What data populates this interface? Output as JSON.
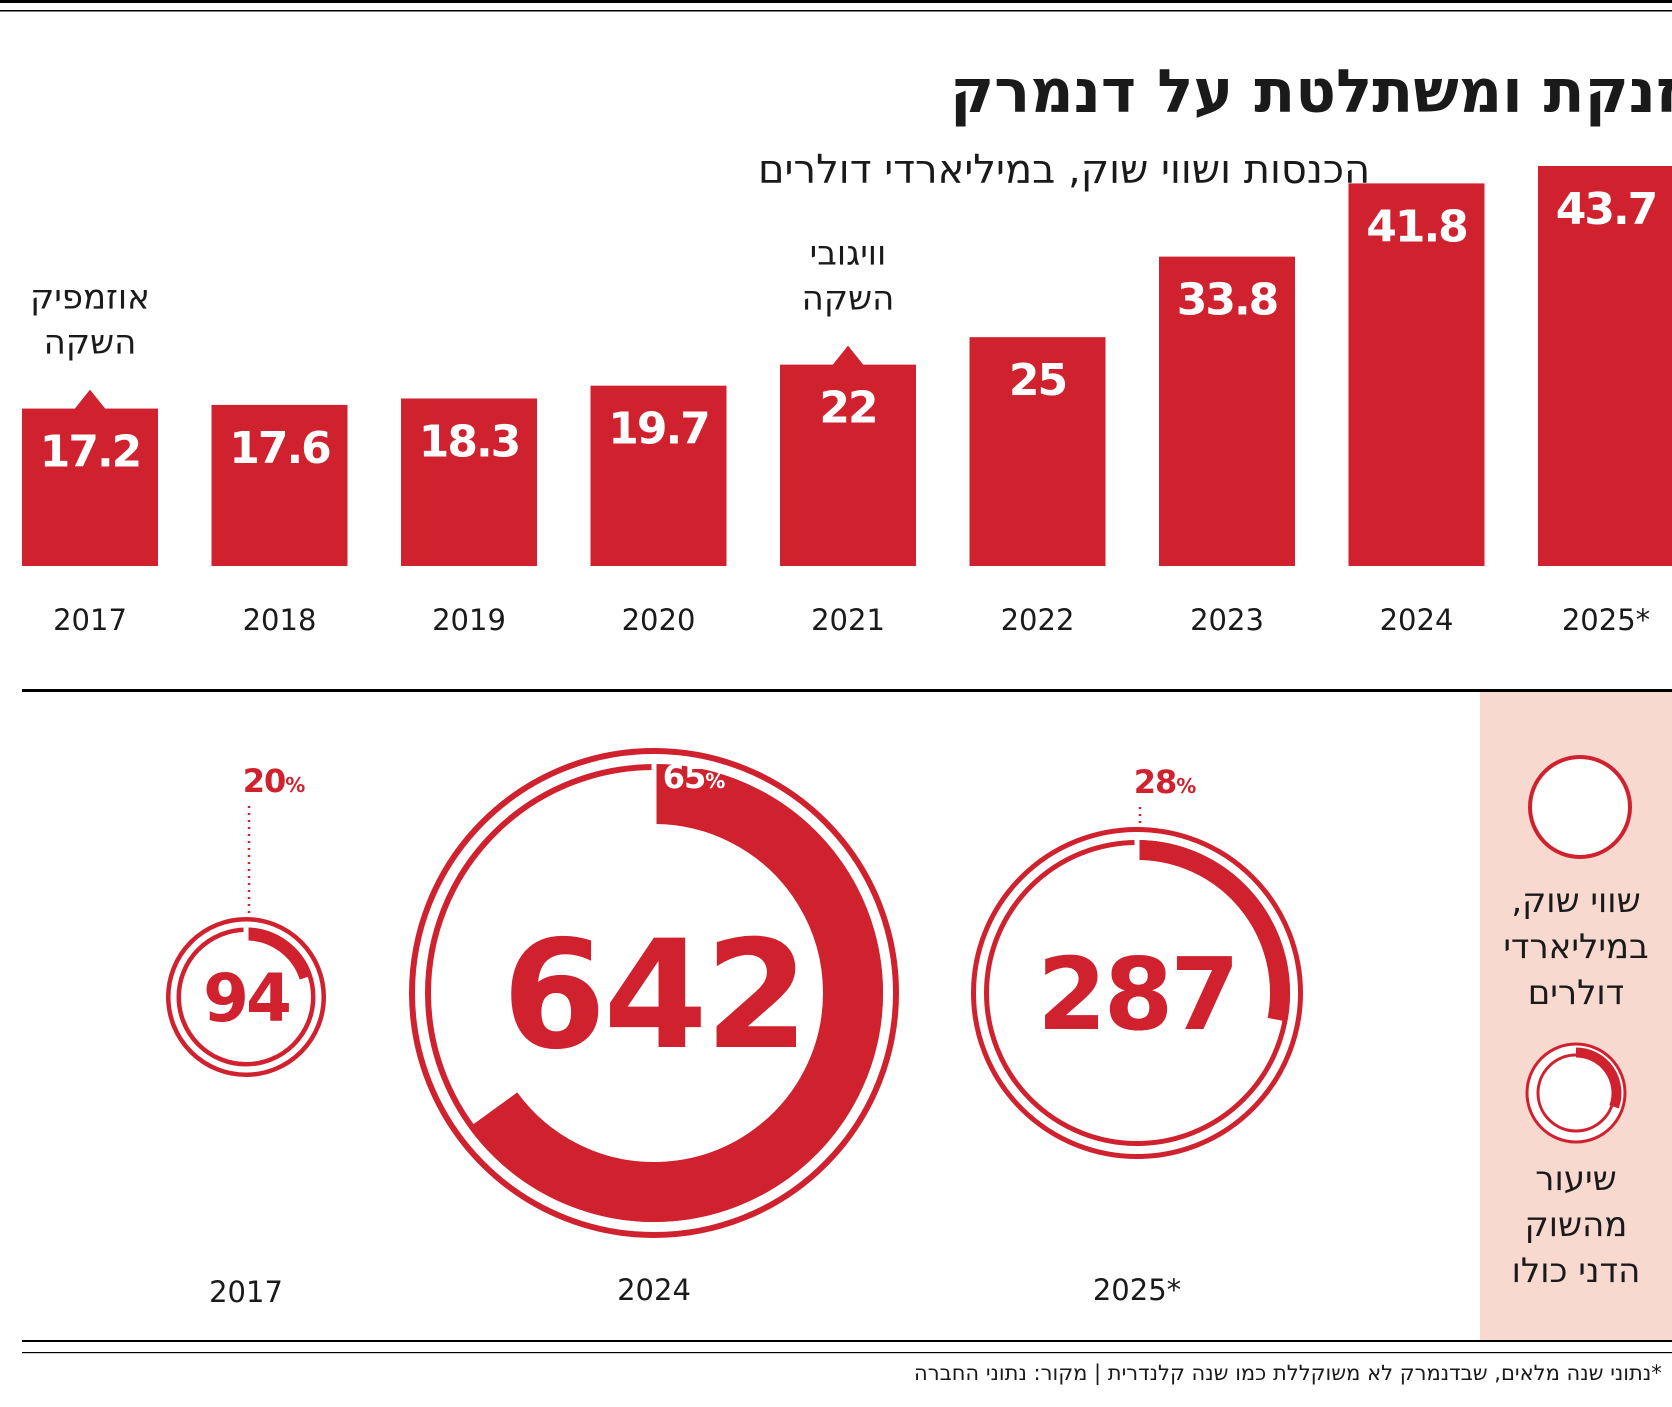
{
  "title": "נובו מזנקת ומשתלטת על דנמרק",
  "subtitle": "הכנסות ושווי שוק, במיליארדי דולרים",
  "footnote": "*נתוני שנה מלאים, שבדנמרק לא משוקללת כמו שנה קלנדרית | מקור: נתוני החברה",
  "colors": {
    "accent": "#d0222e",
    "legend_bg": "#f8d9cf",
    "text": "#1a1a1a",
    "rule": "#000000"
  },
  "chart_data": [
    {
      "type": "bar",
      "title": "הכנסות",
      "unit": "מיליארדי דולרים",
      "categories": [
        "2017",
        "2018",
        "2019",
        "2020",
        "2021",
        "2022",
        "2023",
        "2024",
        "2025*"
      ],
      "values": [
        17.2,
        17.6,
        18.3,
        19.7,
        22,
        25,
        33.8,
        41.8,
        43.7
      ],
      "value_labels": [
        "17.2",
        "17.6",
        "18.3",
        "19.7",
        "22",
        "25",
        "33.8",
        "41.8",
        "43.7"
      ],
      "ylim": [
        0,
        43.7
      ],
      "annotations": [
        {
          "category": "2017",
          "lines": [
            "אוזמפיק",
            "השקה"
          ]
        },
        {
          "category": "2021",
          "lines": [
            "וויגובי",
            "השקה"
          ]
        }
      ]
    },
    {
      "type": "pie",
      "title": "שווי שוק ושיעור מהשוק הדני כולו",
      "items": [
        {
          "year": "2017",
          "market_cap": 94,
          "market_cap_label": "94",
          "share_pct": 20,
          "share_label": "20",
          "label_style": "leader"
        },
        {
          "year": "2024",
          "market_cap": 642,
          "market_cap_label": "642",
          "share_pct": 65,
          "share_label": "65",
          "label_style": "inline"
        },
        {
          "year": "2025*",
          "market_cap": 287,
          "market_cap_label": "287",
          "share_pct": 28,
          "share_label": "28",
          "label_style": "leader"
        }
      ],
      "percent_symbol": "%"
    }
  ],
  "legend": {
    "market_cap_lines": [
      "שווי שוק,",
      "במיליארדי",
      "דולרים"
    ],
    "share_lines": [
      "שיעור",
      "מהשוק",
      "הדני כולו"
    ]
  }
}
